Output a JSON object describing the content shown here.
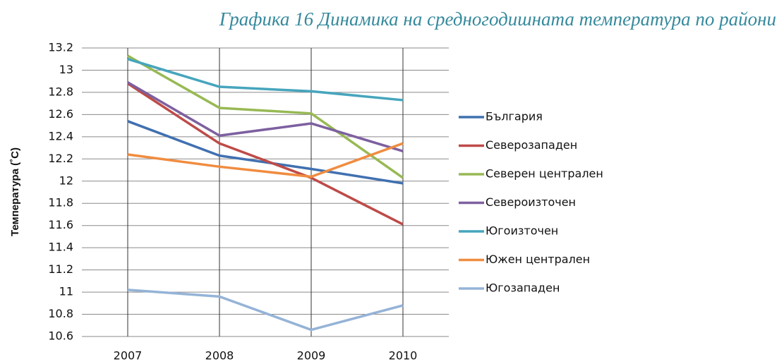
{
  "chart_data": {
    "type": "line",
    "title": "Графика 16  Динамика на средногодишната температура по райони",
    "y_label": "Температура (˚C)",
    "categories": [
      "2007",
      "2008",
      "2009",
      "2010"
    ],
    "series": [
      {
        "name": "България",
        "color": "#4070b0",
        "values": [
          12.54,
          12.23,
          12.11,
          11.98
        ]
      },
      {
        "name": "Северозападен",
        "color": "#be4b48",
        "values": [
          12.88,
          12.34,
          12.03,
          11.61
        ]
      },
      {
        "name": "Северен централен",
        "color": "#98b954",
        "values": [
          13.13,
          12.66,
          12.61,
          12.03
        ]
      },
      {
        "name": "Североизточен",
        "color": "#7d60a0",
        "values": [
          12.89,
          12.41,
          12.52,
          12.27
        ]
      },
      {
        "name": "Югоизточен",
        "color": "#46a5bd",
        "values": [
          13.1,
          12.85,
          12.81,
          12.73
        ]
      },
      {
        "name": "Южен централен",
        "color": "#f08c40",
        "values": [
          12.24,
          12.13,
          12.04,
          12.34
        ]
      },
      {
        "name": "Югозападен",
        "color": "#95b3d7",
        "values": [
          11.02,
          10.96,
          10.66,
          10.88
        ]
      }
    ],
    "ylim": [
      10.6,
      13.2
    ],
    "yticks": [
      10.6,
      10.8,
      11,
      11.2,
      11.4,
      11.6,
      11.8,
      12,
      12.2,
      12.4,
      12.6,
      12.8,
      13,
      13.2
    ],
    "grid": true,
    "legend": "right"
  }
}
